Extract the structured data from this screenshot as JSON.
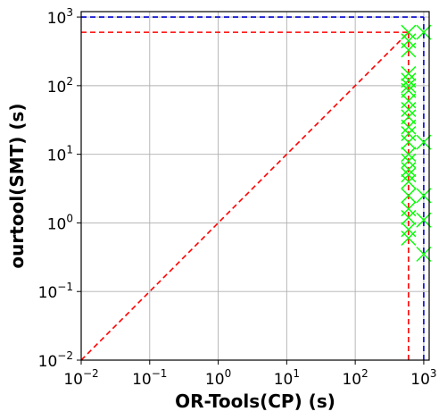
{
  "chart_data": {
    "type": "scatter",
    "title": "",
    "xlabel": "OR-Tools(CP) (s)",
    "ylabel": "ourtool(SMT) (s)",
    "xscale": "log",
    "yscale": "log",
    "xlim": [
      0.01,
      1200
    ],
    "ylim": [
      0.01,
      1200
    ],
    "grid": true,
    "xticks": [
      {
        "value": 0.01,
        "base": "10",
        "exp": "−2"
      },
      {
        "value": 0.1,
        "base": "10",
        "exp": "−1"
      },
      {
        "value": 1,
        "base": "10",
        "exp": "0"
      },
      {
        "value": 10,
        "base": "10",
        "exp": "1"
      },
      {
        "value": 100,
        "base": "10",
        "exp": "2"
      },
      {
        "value": 1000,
        "base": "10",
        "exp": "3"
      }
    ],
    "yticks": [
      {
        "value": 0.01,
        "base": "10",
        "exp": "−2"
      },
      {
        "value": 0.1,
        "base": "10",
        "exp": "−1"
      },
      {
        "value": 1,
        "base": "10",
        "exp": "0"
      },
      {
        "value": 10,
        "base": "10",
        "exp": "1"
      },
      {
        "value": 100,
        "base": "10",
        "exp": "2"
      },
      {
        "value": 1000,
        "base": "10",
        "exp": "3"
      }
    ],
    "reference_lines": [
      {
        "kind": "diagonal",
        "from": [
          0.01,
          0.01
        ],
        "to": [
          600,
          600
        ],
        "color": "#ff0000",
        "style": "dashed"
      },
      {
        "kind": "horizontal",
        "y": 600,
        "x_from": 0.01,
        "x_to": 600,
        "color": "#ff0000",
        "style": "dashed"
      },
      {
        "kind": "vertical",
        "x": 600,
        "y_from": 0.01,
        "y_to": 600,
        "color": "#ff0000",
        "style": "dashed"
      },
      {
        "kind": "horizontal",
        "y": 1000,
        "x_from": 0.01,
        "x_to": 1000,
        "color": "#0000cc",
        "style": "dashed"
      },
      {
        "kind": "vertical",
        "x": 1000,
        "y_from": 0.01,
        "y_to": 1000,
        "color": "#0000cc",
        "style": "dashed"
      }
    ],
    "series": [
      {
        "marker": "x",
        "color": "#00ff00",
        "points": [
          [
            600,
            600
          ],
          [
            600,
            450
          ],
          [
            600,
            330
          ],
          [
            600,
            150
          ],
          [
            600,
            120
          ],
          [
            600,
            100
          ],
          [
            600,
            85
          ],
          [
            600,
            60
          ],
          [
            600,
            45
          ],
          [
            600,
            35
          ],
          [
            600,
            25
          ],
          [
            600,
            20
          ],
          [
            600,
            15
          ],
          [
            600,
            10
          ],
          [
            600,
            8
          ],
          [
            600,
            6
          ],
          [
            600,
            5
          ],
          [
            600,
            4
          ],
          [
            600,
            2.5
          ],
          [
            600,
            1.6
          ],
          [
            600,
            1.2
          ],
          [
            600,
            0.8
          ],
          [
            600,
            0.6
          ],
          [
            1000,
            600
          ],
          [
            1000,
            15
          ],
          [
            1000,
            2.5
          ],
          [
            1000,
            1.1
          ],
          [
            1000,
            0.35
          ]
        ]
      }
    ]
  }
}
